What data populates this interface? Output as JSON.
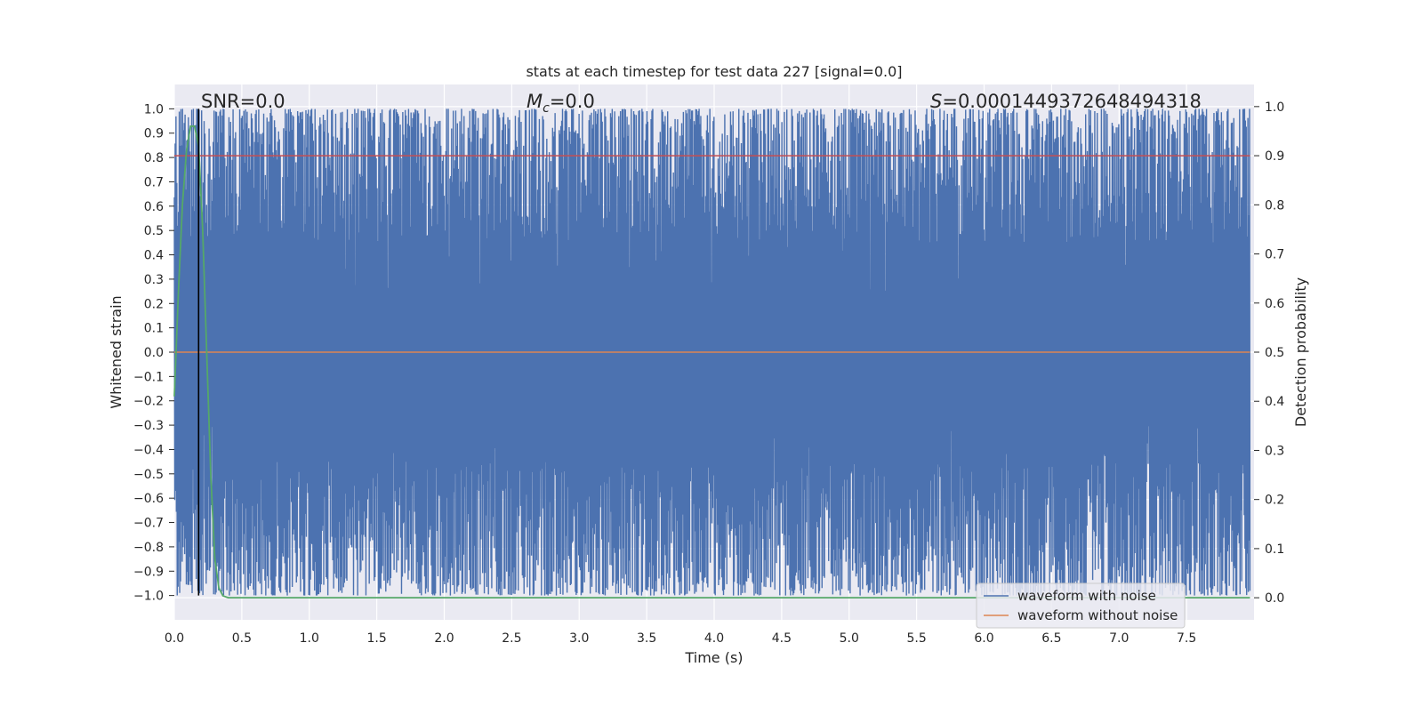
{
  "chart_data": {
    "type": "line",
    "title": "stats at each timestep for test data 227 [signal=0.0]",
    "xlabel": "Time (s)",
    "ylabel_left": "Whitened strain",
    "ylabel_right": "Detection probability",
    "xlim": [
      0.0,
      8.0
    ],
    "ylim_left": [
      -1.1,
      1.1
    ],
    "ylim_right": [
      -0.045,
      1.045
    ],
    "x_ticks": [
      0.0,
      0.5,
      1.0,
      1.5,
      2.0,
      2.5,
      3.0,
      3.5,
      4.0,
      4.5,
      5.0,
      5.5,
      6.0,
      6.5,
      7.0,
      7.5
    ],
    "x_tick_labels": [
      "0.0",
      "0.5",
      "1.0",
      "1.5",
      "2.0",
      "2.5",
      "3.0",
      "3.5",
      "4.0",
      "4.5",
      "5.0",
      "5.5",
      "6.0",
      "6.5",
      "7.0",
      "7.5"
    ],
    "y_left_ticks": [
      1.0,
      0.9,
      0.8,
      0.7,
      0.6,
      0.5,
      0.4,
      0.3,
      0.2,
      0.1,
      0.0,
      -0.1,
      -0.2,
      -0.3,
      -0.4,
      -0.5,
      -0.6,
      -0.7,
      -0.8,
      -0.9,
      -1.0
    ],
    "y_left_tick_labels": [
      "1.0",
      "0.9",
      "0.8",
      "0.7",
      "0.6",
      "0.5",
      "0.4",
      "0.3",
      "0.2",
      "0.1",
      "0.0",
      "−0.1",
      "−0.2",
      "−0.3",
      "−0.4",
      "−0.5",
      "−0.6",
      "−0.7",
      "−0.8",
      "−0.9",
      "−1.0"
    ],
    "y_right_ticks": [
      1.0,
      0.9,
      0.8,
      0.7,
      0.6,
      0.5,
      0.4,
      0.3,
      0.2,
      0.1,
      0.0
    ],
    "y_right_tick_labels": [
      "1.0",
      "0.9",
      "0.8",
      "0.7",
      "0.6",
      "0.5",
      "0.4",
      "0.3",
      "0.2",
      "0.1",
      "0.0"
    ],
    "grid": true,
    "legend_position": "lower-right",
    "annotations": {
      "snr": "SNR=0.0",
      "mc_symbol": "M",
      "mc_subscript": "c",
      "mc_value": "=0.0",
      "s_symbol": "S",
      "s_value": "=0.0001449372648494318"
    },
    "marker_time": 0.18,
    "series": [
      {
        "name": "waveform with noise",
        "color": "#4c72b0",
        "description_level": "noise spanning approximately -1.0 to 1.0 over the full time range",
        "y_range": [
          -1.0,
          1.0
        ],
        "x_range": [
          0.0,
          8.0
        ]
      },
      {
        "name": "waveform without noise",
        "color": "#dd8452",
        "x": [
          0.0,
          7.97
        ],
        "y": [
          0.0,
          0.0
        ]
      },
      {
        "axis": "right",
        "color": "#55a868",
        "x": [
          0.0,
          0.03,
          0.06,
          0.09,
          0.12,
          0.15,
          0.18,
          0.21,
          0.24,
          0.27,
          0.3,
          0.33,
          0.36,
          0.4,
          1.0,
          2.0,
          4.0,
          6.0,
          7.97
        ],
        "y": [
          0.41,
          0.62,
          0.8,
          0.91,
          0.96,
          0.96,
          0.92,
          0.75,
          0.5,
          0.25,
          0.08,
          0.02,
          0.004,
          0.0,
          0.0,
          0.0,
          0.0,
          0.0,
          0.0
        ]
      },
      {
        "axis": "right",
        "color": "#c44e52",
        "x": [
          0.0,
          7.97
        ],
        "y": [
          0.9,
          0.9
        ]
      }
    ]
  }
}
